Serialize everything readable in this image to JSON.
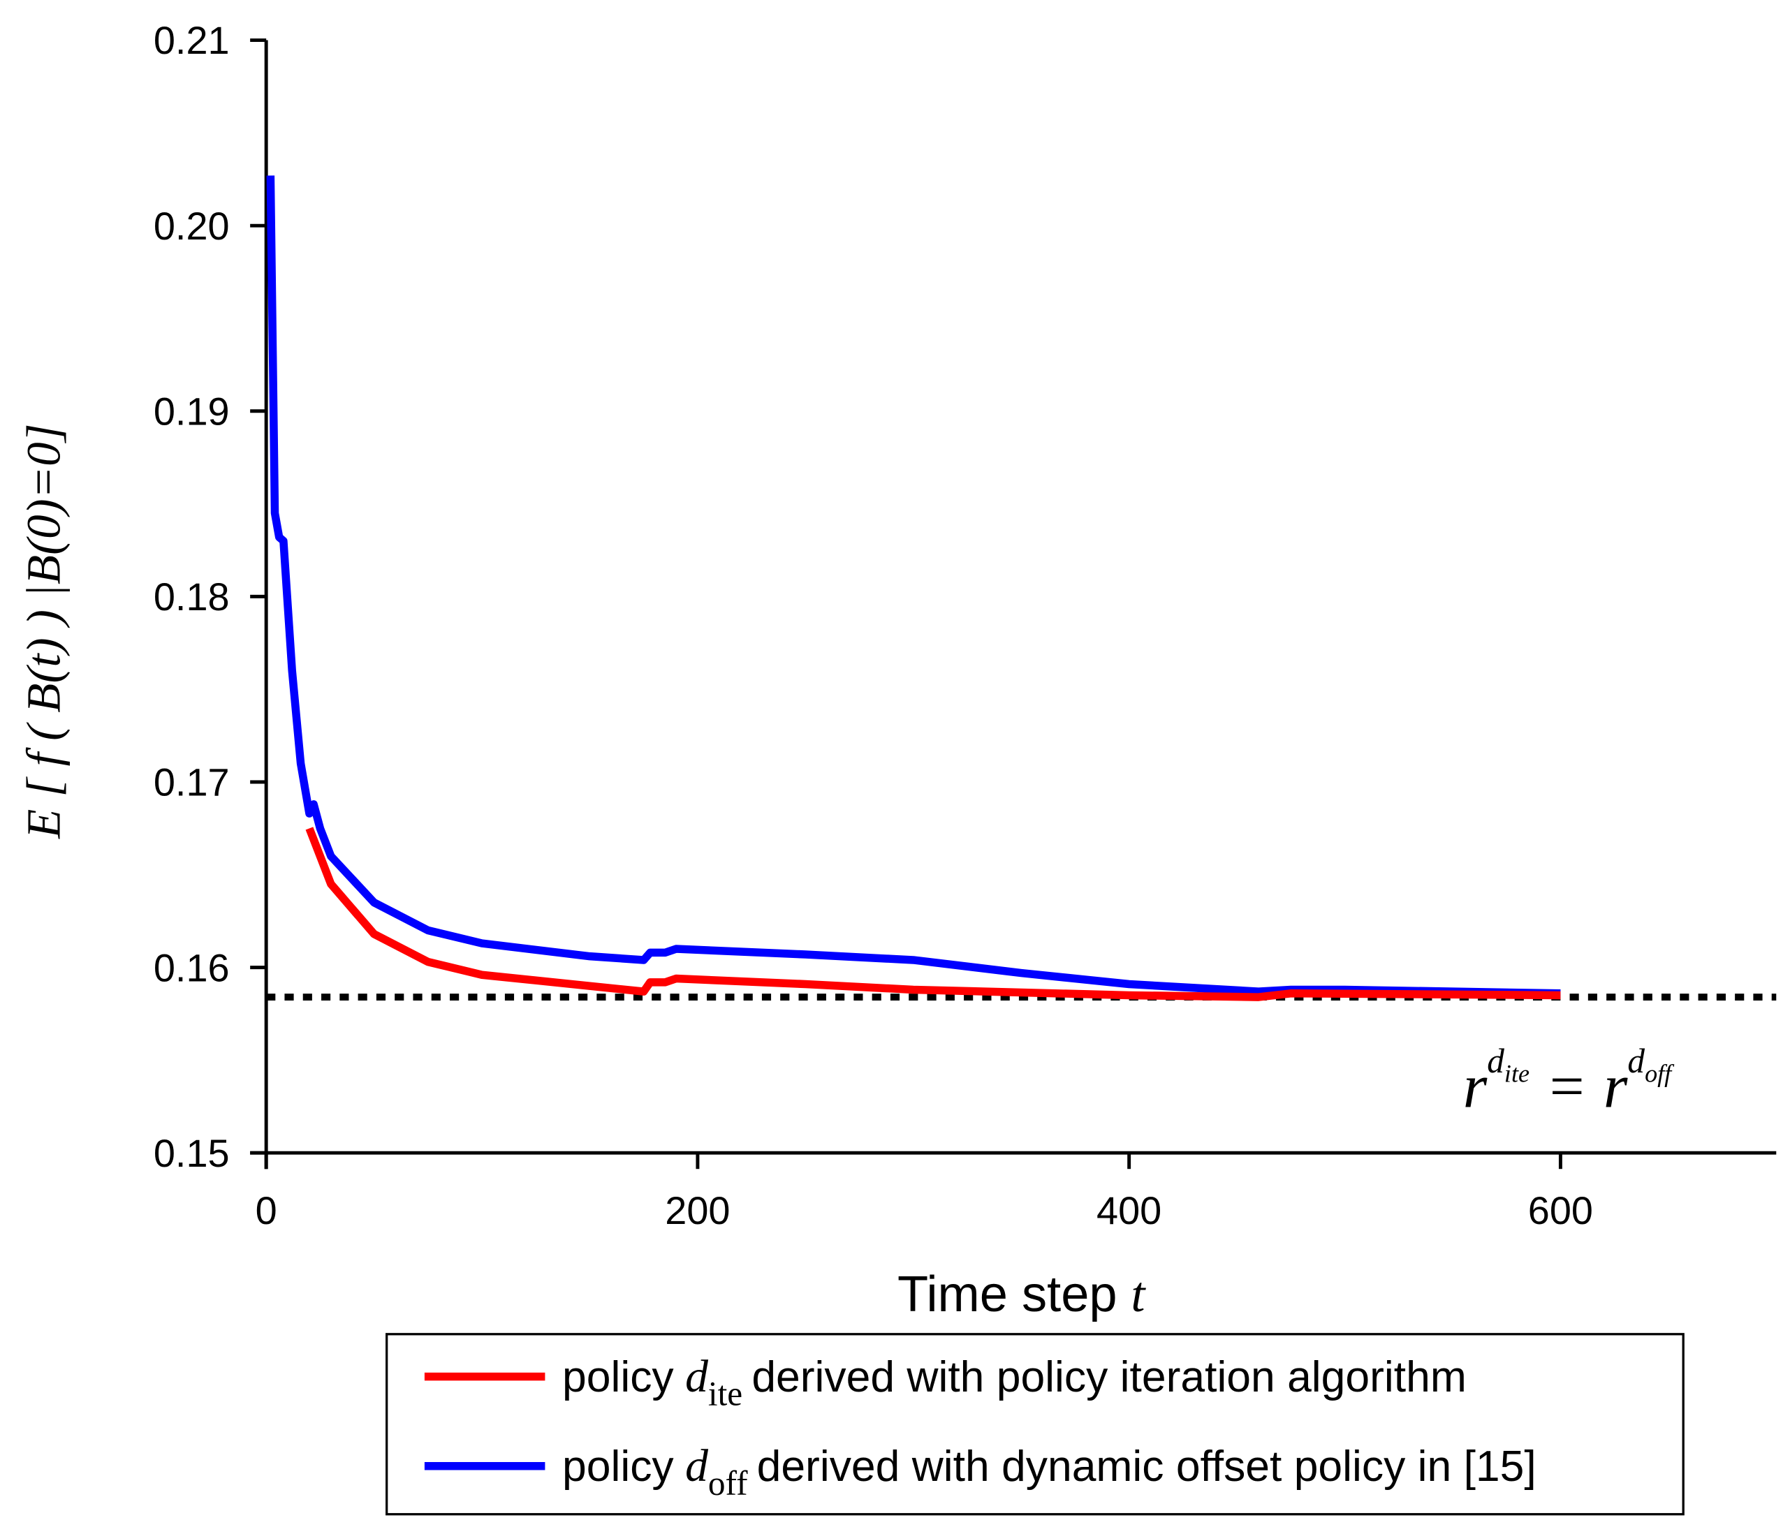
{
  "chart_data": {
    "type": "line",
    "x_label": [
      "Time step",
      "t"
    ],
    "y_label": "E [ f ( B(t) ) |B(0)=0]",
    "xlim": [
      0,
      700
    ],
    "xticks": [
      0,
      200,
      400,
      600
    ],
    "ylim": [
      0.15,
      0.21
    ],
    "yticks": [
      0.15,
      0.16,
      0.17,
      0.18,
      0.19,
      {
        "value": 0.2,
        "label": "0.20"
      },
      0.21
    ],
    "reference_line": {
      "value": 0.1584,
      "color": "#000000"
    },
    "annotation": [
      "r",
      "d",
      "ite",
      "=",
      "r",
      "d",
      "off"
    ],
    "series": [
      {
        "name": [
          "policy",
          "d",
          "ite",
          "derived with policy iteration algorithm"
        ],
        "color": "#ff0000",
        "x": [
          20,
          30,
          50,
          75,
          100,
          150,
          175,
          178,
          185,
          190,
          250,
          300,
          400,
          460,
          475,
          600
        ],
        "values": [
          0.1675,
          0.1645,
          0.1618,
          0.1603,
          0.1596,
          0.159,
          0.1587,
          0.1592,
          0.1592,
          0.1594,
          0.1591,
          0.1588,
          0.1585,
          0.1584,
          0.1586,
          0.1585
        ]
      },
      {
        "name": [
          "policy",
          "d",
          "off",
          "derived with dynamic offset policy in [15]"
        ],
        "color": "#0000ff",
        "x": [
          2,
          4,
          6,
          8,
          12,
          16,
          20,
          22,
          25,
          30,
          50,
          75,
          100,
          150,
          175,
          178,
          185,
          190,
          250,
          300,
          350,
          400,
          460,
          475,
          500,
          600
        ],
        "values": [
          0.2027,
          0.1845,
          0.1832,
          0.183,
          0.176,
          0.171,
          0.1683,
          0.1688,
          0.1675,
          0.166,
          0.1635,
          0.162,
          0.1613,
          0.1606,
          0.1604,
          0.1608,
          0.1608,
          0.161,
          0.1607,
          0.1604,
          0.1597,
          0.1591,
          0.1587,
          0.1588,
          0.1588,
          0.1586
        ]
      }
    ]
  }
}
